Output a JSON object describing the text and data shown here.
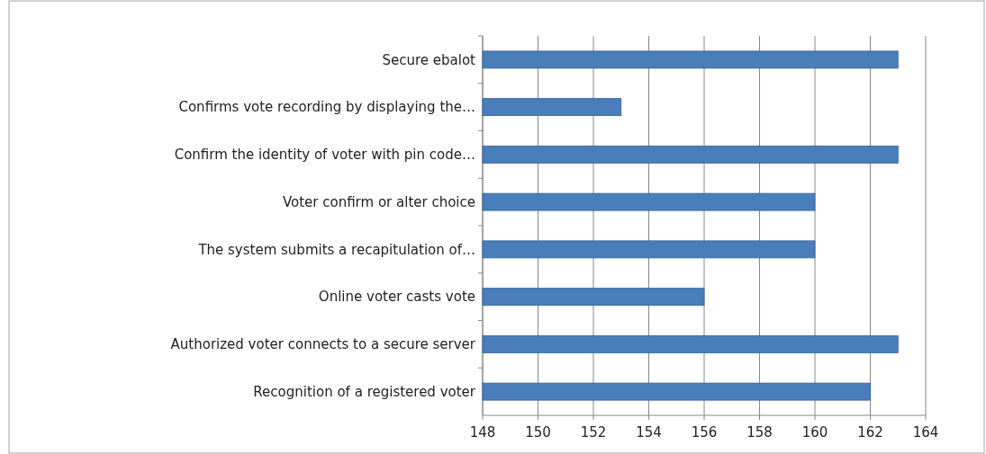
{
  "chart_data": {
    "type": "bar",
    "orientation": "horizontal",
    "categories": [
      "Secure ebalot",
      "Confirms vote recording by displaying the…",
      "Confirm the identity of voter with pin code…",
      "Voter confirm or alter choice",
      "The system submits a recapitulation of…",
      "Online voter casts vote",
      "Authorized voter connects to a secure server",
      "Recognition of  a registered voter"
    ],
    "values": [
      163,
      153,
      163,
      160,
      160,
      156,
      163,
      162
    ],
    "color": "#4a7ebb",
    "xlim": [
      148,
      164
    ],
    "xticks": [
      148,
      150,
      152,
      154,
      156,
      158,
      160,
      162,
      164
    ],
    "grid": "x"
  }
}
